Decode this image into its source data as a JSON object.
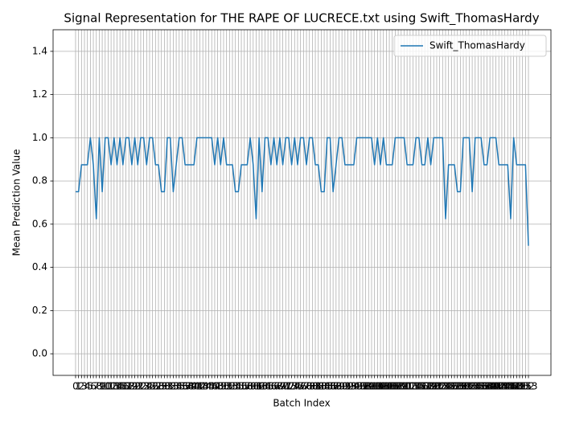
{
  "chart_data": {
    "type": "line",
    "title": "Signal Representation for THE RAPE OF LUCRECE.txt using Swift_ThomasHardy",
    "x_label": "Batch Index",
    "y_label": "Mean Prediction Value",
    "x": [
      0,
      1,
      2,
      3,
      4,
      5,
      6,
      7,
      8,
      9,
      10,
      11,
      12,
      13,
      14,
      15,
      16,
      17,
      18,
      19,
      20,
      21,
      22,
      23,
      24,
      25,
      26,
      27,
      28,
      29,
      30,
      31,
      32,
      33,
      34,
      35,
      36,
      37,
      38,
      39,
      40,
      41,
      42,
      43,
      44,
      45,
      46,
      47,
      48,
      49,
      50,
      51,
      52,
      53,
      54,
      55,
      56,
      57,
      58,
      59,
      60,
      61,
      62,
      63,
      64,
      65,
      66,
      67,
      68,
      69,
      70,
      71,
      72,
      73,
      74,
      75,
      76,
      77,
      78,
      79,
      80,
      81,
      82,
      83,
      84,
      85,
      86,
      87,
      88,
      89,
      90,
      91,
      92,
      93,
      94,
      95,
      96,
      97,
      98,
      99,
      100,
      101,
      102,
      103,
      104,
      105,
      106,
      107,
      108,
      109,
      110,
      111,
      112,
      113,
      114,
      115,
      116,
      117,
      118,
      119,
      120,
      121,
      122,
      123,
      124,
      125,
      126,
      127,
      128,
      129,
      130,
      131,
      132,
      133,
      134,
      135,
      136,
      137,
      138,
      139,
      140,
      141,
      142,
      143,
      144,
      145,
      146,
      147,
      148,
      149,
      150,
      151,
      152,
      153
    ],
    "series": [
      {
        "name": "Swift_ThomasHardy",
        "color": "#1f77b4",
        "values": [
          0.75,
          0.75,
          0.875,
          0.875,
          0.875,
          1,
          0.875,
          0.625,
          1,
          0.75,
          1,
          1,
          0.875,
          1,
          0.875,
          1,
          0.875,
          1,
          1,
          0.875,
          1,
          0.875,
          1,
          1,
          0.875,
          1,
          1,
          0.875,
          0.875,
          0.75,
          0.75,
          1,
          1,
          0.75,
          0.875,
          1,
          1,
          0.875,
          0.875,
          0.875,
          0.875,
          1,
          1,
          1,
          1,
          1,
          1,
          0.875,
          1,
          0.875,
          1,
          0.875,
          0.875,
          0.875,
          0.75,
          0.75,
          0.875,
          0.875,
          0.875,
          1,
          0.875,
          0.625,
          1,
          0.75,
          1,
          1,
          0.875,
          1,
          0.875,
          1,
          0.875,
          1,
          1,
          0.875,
          1,
          0.875,
          1,
          1,
          0.875,
          1,
          1,
          0.875,
          0.875,
          0.75,
          0.75,
          1,
          1,
          0.75,
          0.875,
          1,
          1,
          0.875,
          0.875,
          0.875,
          0.875,
          1,
          1,
          1,
          1,
          1,
          1,
          0.875,
          1,
          0.875,
          1,
          0.875,
          0.875,
          0.875,
          1,
          1,
          1,
          1,
          0.875,
          0.875,
          0.875,
          1,
          1,
          0.875,
          0.875,
          1,
          0.875,
          1,
          1,
          1,
          1,
          0.625,
          0.875,
          0.875,
          0.875,
          0.75,
          0.75,
          1,
          1,
          1,
          0.75,
          1,
          1,
          1,
          0.875,
          0.875,
          1,
          1,
          1,
          0.875,
          0.875,
          0.875,
          0.875,
          0.625,
          1,
          0.875,
          0.875,
          0.875,
          0.875,
          0.5
        ]
      }
    ],
    "xlim": [
      -7.6,
      160.6
    ],
    "xticks": [
      0,
      1,
      2,
      3,
      4,
      5,
      6,
      7,
      8,
      9,
      10,
      11,
      12,
      13,
      14,
      15,
      16,
      17,
      18,
      19,
      20,
      21,
      22,
      23,
      24,
      25,
      26,
      27,
      28,
      29,
      30,
      31,
      32,
      33,
      34,
      35,
      36,
      37,
      38,
      39,
      40,
      41,
      42,
      43,
      44,
      45,
      46,
      47,
      48,
      49,
      50,
      51,
      52,
      53,
      54,
      55,
      56,
      57,
      58,
      59,
      60,
      61,
      62,
      63,
      64,
      65,
      66,
      67,
      68,
      69,
      70,
      71,
      72,
      73,
      74,
      75,
      76,
      77,
      78,
      79,
      80,
      81,
      82,
      83,
      84,
      85,
      86,
      87,
      88,
      89,
      90,
      91,
      92,
      93,
      94,
      95,
      96,
      97,
      98,
      99,
      100,
      101,
      102,
      103,
      104,
      105,
      106,
      107,
      108,
      109,
      110,
      111,
      112,
      113,
      114,
      115,
      116,
      117,
      118,
      119,
      120,
      121,
      122,
      123,
      124,
      125,
      126,
      127,
      128,
      129,
      130,
      131,
      132,
      133,
      134,
      135,
      136,
      137,
      138,
      139,
      140,
      141,
      142,
      143,
      144,
      145,
      146,
      147,
      148,
      149,
      150,
      151,
      152,
      153
    ],
    "ylim": [
      -0.1,
      1.5
    ],
    "yticks": [
      {
        "value": 0,
        "label": "0.0"
      },
      0.2,
      0.4,
      0.6,
      0.8,
      {
        "value": 1,
        "label": "1.0"
      },
      1.2,
      1.4
    ],
    "grid": true,
    "legend": "upper right"
  }
}
